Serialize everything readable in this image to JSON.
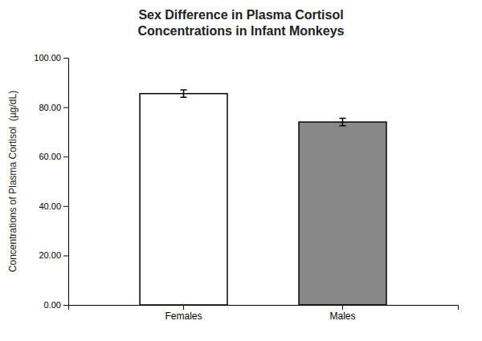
{
  "chart_data": {
    "type": "bar",
    "title": "Sex Difference in Plasma Cortisol\nConcentrations in Infant Monkeys",
    "y_label": "Concentrations of Plasma Cortisol  (µg/dL)",
    "categories": [
      "Females",
      "Males"
    ],
    "values": [
      85.5,
      74.0
    ],
    "errors": [
      1.5,
      1.5
    ],
    "colors": [
      "#ffffff",
      "#888888"
    ],
    "ylim": [
      0,
      100
    ],
    "yticks": [
      {
        "value": 0,
        "label": "0.00"
      },
      {
        "value": 20,
        "label": "20.00"
      },
      {
        "value": 40,
        "label": "40.00"
      },
      {
        "value": 60,
        "label": "60.00"
      },
      {
        "value": 80,
        "label": "80.00"
      },
      {
        "value": 100,
        "label": "100.00"
      }
    ],
    "grid": false
  }
}
